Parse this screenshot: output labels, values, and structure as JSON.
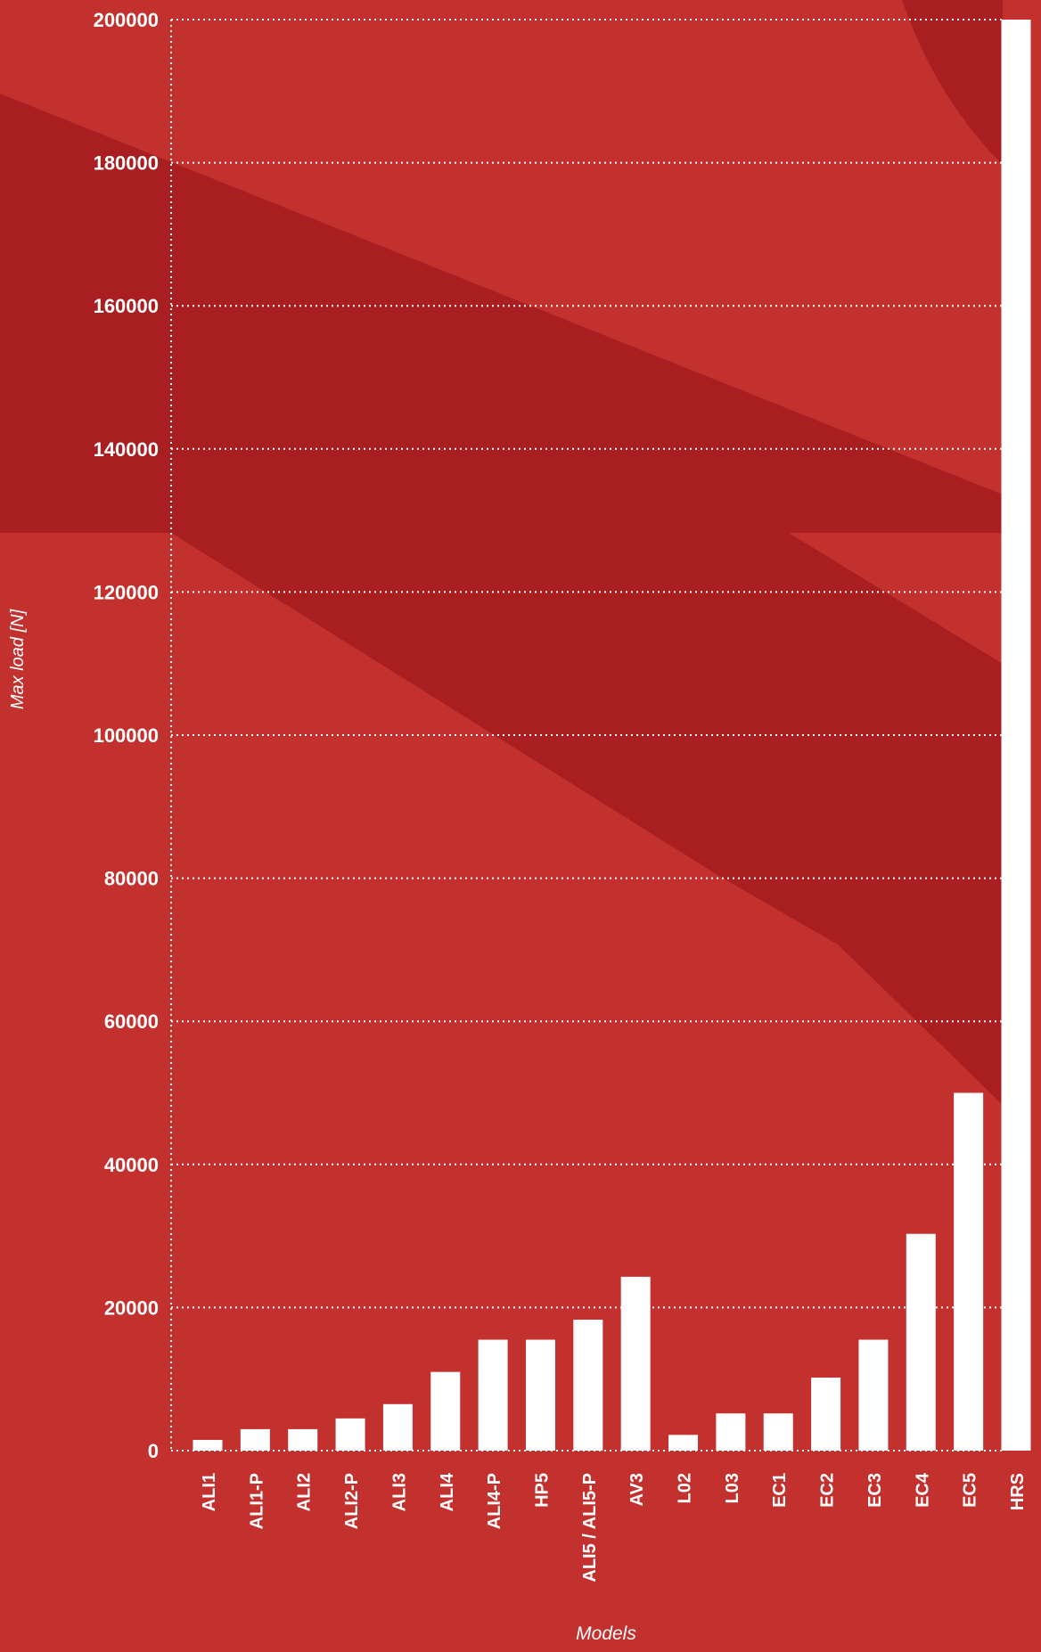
{
  "colors": {
    "background": "#c3312f",
    "band": "#a91f21",
    "bar": "#ffffff",
    "grid": "#ffffff",
    "text": "#ffffff"
  },
  "chart_data": {
    "type": "bar",
    "title": "",
    "xlabel": "Models",
    "ylabel": "Max load [N]",
    "ylim": [
      0,
      200000
    ],
    "yticks": [
      0,
      20000,
      40000,
      60000,
      80000,
      100000,
      120000,
      140000,
      160000,
      180000,
      200000
    ],
    "grid": true,
    "categories": [
      "ALI1",
      "ALI1-P",
      "ALI2",
      "ALI2-P",
      "ALI3",
      "ALI4",
      "ALI4-P",
      "HP5",
      "ALI5 / ALI5-P",
      "AV3",
      "L02",
      "L03",
      "EC1",
      "EC2",
      "EC3",
      "EC4",
      "EC5",
      "HRS"
    ],
    "values": [
      1500,
      3000,
      3000,
      4500,
      6500,
      11000,
      15500,
      15500,
      18300,
      24300,
      2200,
      5200,
      5200,
      10200,
      15500,
      30300,
      50000,
      200000
    ]
  }
}
